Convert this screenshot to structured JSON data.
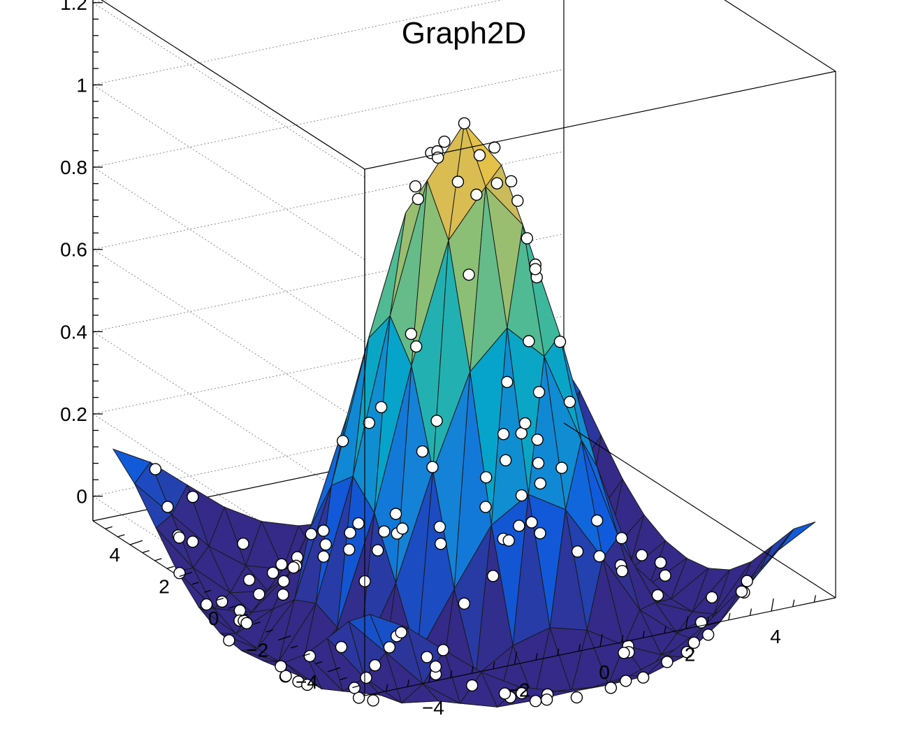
{
  "chart_data": {
    "type": "surface3d",
    "title": "Graph2D",
    "x_ticks": [
      "−4",
      "−2",
      "0",
      "2",
      "4"
    ],
    "y_ticks": [
      "−4",
      "−2",
      "0",
      "2",
      "4"
    ],
    "z_ticks": [
      "0",
      "0.2",
      "0.4",
      "0.6",
      "0.8",
      "1",
      "1.2"
    ],
    "xlim": [
      -5.5,
      5.5
    ],
    "ylim": [
      -5.5,
      5.5
    ],
    "zlim": [
      -0.06,
      1.22
    ],
    "function_note": "sin(r)/r",
    "grid": true,
    "palette": [
      "#352a87",
      "#0f5cdd",
      "#1481d6",
      "#06a4ca",
      "#2eb7a4",
      "#87bf77",
      "#d1bb59",
      "#fec832",
      "#f9fb0e"
    ]
  }
}
